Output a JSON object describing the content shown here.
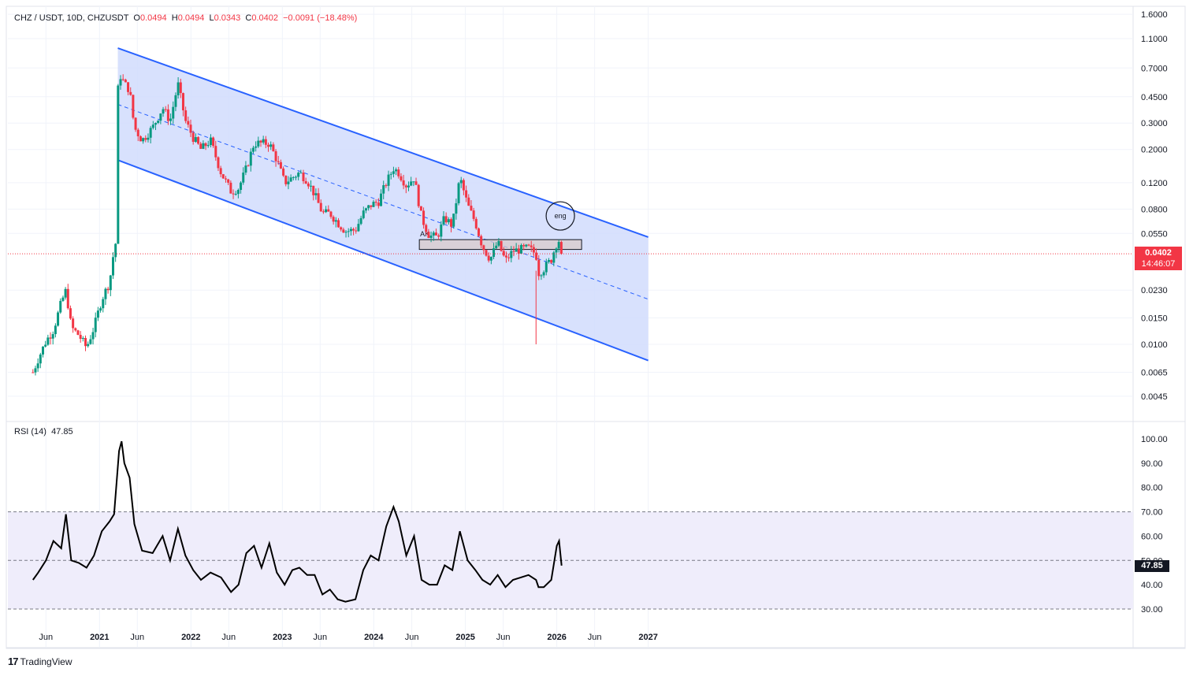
{
  "header": {
    "symbol": "CHZ / USDT, 10D, CHZUSDT",
    "o_label": "O",
    "o_value": "0.0494",
    "h_label": "H",
    "h_value": "0.0494",
    "l_label": "L",
    "l_value": "0.0343",
    "c_label": "C",
    "c_value": "0.0402",
    "change": "−0.0091 (−18.48%)"
  },
  "price_tag": {
    "price": "0.0402",
    "countdown": "14:46:07"
  },
  "rsi_header": {
    "label": "RSI (14)",
    "value": "47.85"
  },
  "rsi_tag": "47.85",
  "brand": {
    "name": "TradingView",
    "logo_text": "17"
  },
  "annotations": {
    "circle_label": "eng",
    "zone_label": "AK"
  },
  "colors": {
    "up": "#089981",
    "down": "#f23645",
    "channel": "#2962ff",
    "channel_fill": "#d1dcfd",
    "rsi_band": "#efedfb",
    "zone_fill": "#d9c9c9"
  },
  "chart_data": [
    {
      "type": "candlestick",
      "title": "CHZ / USDT, 10D, CHZUSDT",
      "y_scale": "log",
      "y_ticks": [
        "1.6000",
        "1.1000",
        "0.7000",
        "0.4500",
        "0.3000",
        "0.2000",
        "0.1200",
        "0.0800",
        "0.0550",
        "0.0230",
        "0.0150",
        "0.0100",
        "0.0065",
        "0.0045"
      ],
      "x_ticks": [
        "Jun",
        "2021",
        "Jun",
        "2022",
        "Jun",
        "2023",
        "Jun",
        "2024",
        "Jun",
        "2025",
        "Jun",
        "2026",
        "Jun",
        "2027"
      ],
      "last_close": 0.0402,
      "close_path": [
        [
          "2020-04-10",
          0.0065
        ],
        [
          "2020-05-01",
          0.008
        ],
        [
          "2020-06-01",
          0.0105
        ],
        [
          "2020-07-01",
          0.0125
        ],
        [
          "2020-08-01",
          0.019
        ],
        [
          "2020-08-20",
          0.023
        ],
        [
          "2020-09-10",
          0.013
        ],
        [
          "2020-10-10",
          0.0115
        ],
        [
          "2020-11-10",
          0.0095
        ],
        [
          "2020-12-10",
          0.013
        ],
        [
          "2021-01-10",
          0.02
        ],
        [
          "2021-02-10",
          0.026
        ],
        [
          "2021-02-28",
          0.043
        ],
        [
          "2021-03-10",
          0.05
        ],
        [
          "2021-03-13",
          0.42
        ],
        [
          "2021-03-20",
          0.65
        ],
        [
          "2021-04-10",
          0.55
        ],
        [
          "2021-05-01",
          0.5
        ],
        [
          "2021-05-20",
          0.28
        ],
        [
          "2021-06-20",
          0.23
        ],
        [
          "2021-08-01",
          0.28
        ],
        [
          "2021-09-10",
          0.38
        ],
        [
          "2021-10-10",
          0.31
        ],
        [
          "2021-11-10",
          0.55
        ],
        [
          "2021-12-10",
          0.31
        ],
        [
          "2022-01-10",
          0.24
        ],
        [
          "2022-02-10",
          0.2
        ],
        [
          "2022-03-20",
          0.23
        ],
        [
          "2022-05-01",
          0.14
        ],
        [
          "2022-06-10",
          0.105
        ],
        [
          "2022-07-10",
          0.11
        ],
        [
          "2022-08-10",
          0.15
        ],
        [
          "2022-09-10",
          0.22
        ],
        [
          "2022-11-10",
          0.22
        ],
        [
          "2022-12-10",
          0.17
        ],
        [
          "2023-01-10",
          0.12
        ],
        [
          "2023-02-10",
          0.13
        ],
        [
          "2023-03-10",
          0.14
        ],
        [
          "2023-04-10",
          0.125
        ],
        [
          "2023-05-10",
          0.1
        ],
        [
          "2023-06-10",
          0.075
        ],
        [
          "2023-07-10",
          0.075
        ],
        [
          "2023-08-10",
          0.065
        ],
        [
          "2023-09-10",
          0.057
        ],
        [
          "2023-10-20",
          0.058
        ],
        [
          "2023-11-20",
          0.075
        ],
        [
          "2023-12-20",
          0.085
        ],
        [
          "2024-01-20",
          0.09
        ],
        [
          "2024-02-20",
          0.12
        ],
        [
          "2024-03-20",
          0.15
        ],
        [
          "2024-04-10",
          0.14
        ],
        [
          "2024-05-10",
          0.115
        ],
        [
          "2024-06-10",
          0.13
        ],
        [
          "2024-07-10",
          0.07
        ],
        [
          "2024-08-10",
          0.053
        ],
        [
          "2024-09-10",
          0.052
        ],
        [
          "2024-10-10",
          0.07
        ],
        [
          "2024-11-10",
          0.062
        ],
        [
          "2024-12-10",
          0.13
        ],
        [
          "2025-01-10",
          0.085
        ],
        [
          "2025-02-10",
          0.065
        ],
        [
          "2025-03-10",
          0.045
        ],
        [
          "2025-04-10",
          0.037
        ],
        [
          "2025-05-10",
          0.048
        ],
        [
          "2025-06-10",
          0.036
        ],
        [
          "2025-07-10",
          0.042
        ],
        [
          "2025-08-10",
          0.043
        ],
        [
          "2025-09-10",
          0.044
        ],
        [
          "2025-10-10",
          0.04
        ],
        [
          "2025-10-20",
          0.03
        ],
        [
          "2025-11-10",
          0.032
        ],
        [
          "2025-12-10",
          0.037
        ],
        [
          "2026-01-01",
          0.048
        ],
        [
          "2026-01-10",
          0.0494
        ],
        [
          "2026-01-20",
          0.0402
        ]
      ],
      "extreme_wick_low": {
        "date": "2025-10-10",
        "value": 0.01
      },
      "channel": {
        "upper": [
          [
            "2021-03-15",
            0.95
          ],
          [
            "2027-01-01",
            0.052
          ]
        ],
        "lower": [
          [
            "2021-03-15",
            0.17
          ],
          [
            "2027-01-01",
            0.0078
          ]
        ],
        "mid_dashed": [
          [
            "2021-03-15",
            0.4
          ],
          [
            "2027-01-01",
            0.02
          ]
        ]
      },
      "zone": {
        "from": "2024-07-01",
        "to": "2026-04-10",
        "high": 0.05,
        "low": 0.043
      }
    },
    {
      "type": "line",
      "title": "RSI (14)",
      "y_ticks": [
        "100.00",
        "90.00",
        "80.00",
        "70.00",
        "60.00",
        "50.00",
        "40.00",
        "30.00"
      ],
      "ylim": [
        26,
        104
      ],
      "band": [
        30,
        70
      ],
      "midline": 50,
      "last": 47.85,
      "points": [
        [
          "2020-04-10",
          42
        ],
        [
          "2020-05-01",
          45
        ],
        [
          "2020-06-01",
          50
        ],
        [
          "2020-07-01",
          58
        ],
        [
          "2020-08-01",
          55
        ],
        [
          "2020-08-20",
          69
        ],
        [
          "2020-09-10",
          50
        ],
        [
          "2020-10-10",
          49
        ],
        [
          "2020-11-10",
          47
        ],
        [
          "2020-12-10",
          52
        ],
        [
          "2021-01-10",
          62
        ],
        [
          "2021-02-10",
          66
        ],
        [
          "2021-02-28",
          69
        ],
        [
          "2021-03-20",
          95
        ],
        [
          "2021-03-30",
          99
        ],
        [
          "2021-04-10",
          90
        ],
        [
          "2021-05-01",
          84
        ],
        [
          "2021-05-20",
          65
        ],
        [
          "2021-06-20",
          54
        ],
        [
          "2021-08-01",
          53
        ],
        [
          "2021-09-10",
          60
        ],
        [
          "2021-10-10",
          50
        ],
        [
          "2021-11-10",
          63
        ],
        [
          "2021-12-10",
          52
        ],
        [
          "2022-01-10",
          46
        ],
        [
          "2022-02-10",
          42
        ],
        [
          "2022-03-20",
          45
        ],
        [
          "2022-05-01",
          43
        ],
        [
          "2022-06-10",
          37
        ],
        [
          "2022-07-10",
          40
        ],
        [
          "2022-08-10",
          53
        ],
        [
          "2022-09-10",
          56
        ],
        [
          "2022-10-10",
          47
        ],
        [
          "2022-11-10",
          57
        ],
        [
          "2022-12-10",
          45
        ],
        [
          "2023-01-10",
          40
        ],
        [
          "2023-02-10",
          46
        ],
        [
          "2023-03-10",
          47
        ],
        [
          "2023-04-10",
          44
        ],
        [
          "2023-05-10",
          44
        ],
        [
          "2023-06-10",
          36
        ],
        [
          "2023-07-10",
          38
        ],
        [
          "2023-08-10",
          34
        ],
        [
          "2023-09-10",
          33
        ],
        [
          "2023-10-20",
          34
        ],
        [
          "2023-11-20",
          46
        ],
        [
          "2023-12-20",
          52
        ],
        [
          "2024-01-20",
          50
        ],
        [
          "2024-02-20",
          64
        ],
        [
          "2024-03-20",
          72
        ],
        [
          "2024-04-10",
          66
        ],
        [
          "2024-05-10",
          52
        ],
        [
          "2024-06-10",
          60
        ],
        [
          "2024-07-10",
          42
        ],
        [
          "2024-08-10",
          40
        ],
        [
          "2024-09-10",
          40
        ],
        [
          "2024-10-10",
          48
        ],
        [
          "2024-11-10",
          46
        ],
        [
          "2024-12-10",
          62
        ],
        [
          "2025-01-10",
          50
        ],
        [
          "2025-02-10",
          46
        ],
        [
          "2025-03-10",
          42
        ],
        [
          "2025-04-10",
          40
        ],
        [
          "2025-05-10",
          44
        ],
        [
          "2025-06-10",
          39
        ],
        [
          "2025-07-10",
          42
        ],
        [
          "2025-08-10",
          43
        ],
        [
          "2025-09-10",
          44
        ],
        [
          "2025-10-10",
          42
        ],
        [
          "2025-10-20",
          39
        ],
        [
          "2025-11-10",
          39
        ],
        [
          "2025-12-10",
          42
        ],
        [
          "2026-01-01",
          56
        ],
        [
          "2026-01-10",
          58
        ],
        [
          "2026-01-20",
          47.85
        ]
      ]
    }
  ]
}
